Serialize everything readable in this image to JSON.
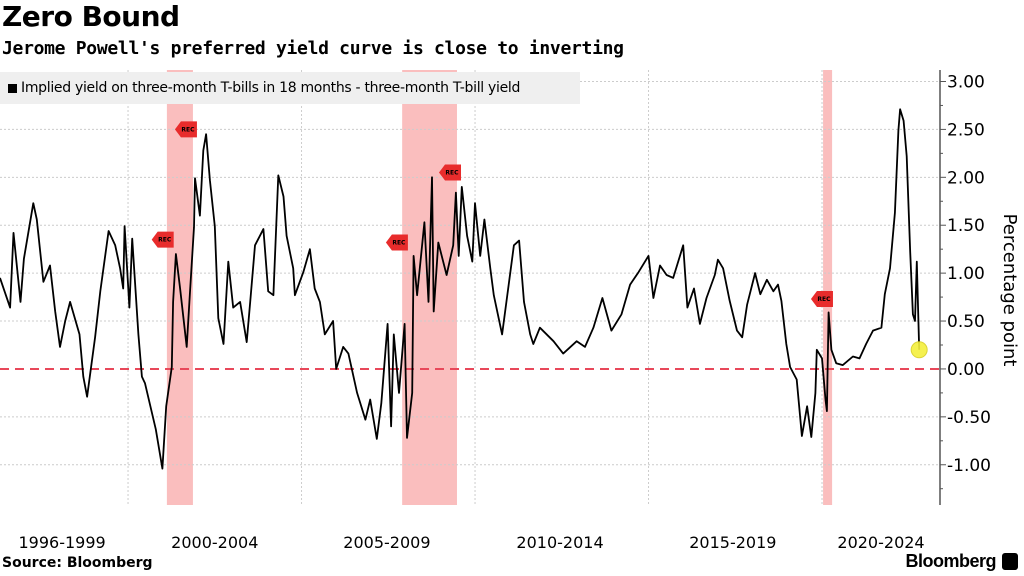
{
  "header": {
    "title": "Zero Bound",
    "subtitle": "Jerome Powell's preferred yield curve is close to inverting"
  },
  "footer": {
    "source": "Source: Bloomberg",
    "brand": "Bloomberg"
  },
  "colors": {
    "line": "#000000",
    "recession": "#f9b3b3",
    "zero_line": "#e8485a",
    "marker": "#e82c2c",
    "highlight": "#f5f03c"
  },
  "chart_data": {
    "type": "line",
    "title": "Zero Bound",
    "subtitle": "Jerome Powell's preferred yield curve is close to inverting",
    "ylabel": "Percentage point",
    "xlabel": "",
    "ylim": [
      -1.42,
      3.12
    ],
    "xlim": [
      1996.31,
      2023.4
    ],
    "grid": true,
    "legend_placement": "top-left",
    "yticks": [
      {
        "v": 3,
        "label": "3.00"
      },
      {
        "v": 2.5,
        "label": "2.50"
      },
      {
        "v": 2,
        "label": "2.00"
      },
      {
        "v": 1.5,
        "label": "1.50"
      },
      {
        "v": 1,
        "label": "1.00"
      },
      {
        "v": 0.5,
        "label": "0.50"
      },
      {
        "v": 0,
        "label": "0.00"
      },
      {
        "v": -0.5,
        "label": "-0.50"
      },
      {
        "v": -1,
        "label": "-1.00"
      }
    ],
    "xgrid": [
      2000,
      2005,
      2010,
      2015,
      2020
    ],
    "xticks": [
      {
        "pos": 1998.1,
        "label": "1996-1999"
      },
      {
        "pos": 2002.5,
        "label": "2000-2004"
      },
      {
        "pos": 2007.46,
        "label": "2005-2009"
      },
      {
        "pos": 2012.45,
        "label": "2010-2014"
      },
      {
        "pos": 2017.43,
        "label": "2015-2019"
      },
      {
        "pos": 2021.7,
        "label": "2020-2024"
      }
    ],
    "reference_line": 0,
    "recessions": [
      [
        2001.12,
        2001.87
      ],
      [
        2007.9,
        2009.48
      ],
      [
        2020.03,
        2020.29
      ]
    ],
    "recession_markers": [
      {
        "x": 2001.87,
        "y": 2.5,
        "label": "REC"
      },
      {
        "x": 2001.2,
        "y": 1.35,
        "label": "REC"
      },
      {
        "x": 2007.95,
        "y": 1.32,
        "label": "REC"
      },
      {
        "x": 2009.48,
        "y": 2.05,
        "label": "REC"
      },
      {
        "x": 2020.2,
        "y": 0.73,
        "label": "REC"
      }
    ],
    "highlight_point": {
      "x": 2022.8,
      "y": 0.2
    },
    "series": [
      {
        "name": "Implied yield on three-month T-bills in 18 months - three-month T-bill yield",
        "x": [
          1996.31,
          1996.6,
          1996.7,
          1996.9,
          1997.0,
          1997.27,
          1997.37,
          1997.56,
          1997.75,
          1997.9,
          1998.04,
          1998.19,
          1998.33,
          1998.6,
          1998.71,
          1998.82,
          1999.05,
          1999.2,
          1999.44,
          1999.63,
          1999.77,
          1999.86,
          1999.9,
          2000.04,
          2000.12,
          2000.3,
          2000.4,
          2000.49,
          2000.8,
          2000.99,
          2001.1,
          2001.26,
          2001.3,
          2001.38,
          2001.5,
          2001.69,
          2001.78,
          2001.9,
          2001.93,
          2002.07,
          2002.17,
          2002.25,
          2002.36,
          2002.5,
          2002.6,
          2002.75,
          2002.89,
          2003.03,
          2003.23,
          2003.42,
          2003.52,
          2003.66,
          2003.9,
          2004.04,
          2004.19,
          2004.33,
          2004.48,
          2004.57,
          2004.76,
          2004.81,
          2005.05,
          2005.24,
          2005.38,
          2005.53,
          2005.67,
          2005.91,
          2006.0,
          2006.2,
          2006.35,
          2006.6,
          2006.84,
          2006.98,
          2007.17,
          2007.3,
          2007.48,
          2007.58,
          2007.66,
          2007.81,
          2007.97,
          2008.04,
          2008.19,
          2008.23,
          2008.33,
          2008.54,
          2008.66,
          2008.76,
          2008.81,
          2008.94,
          2009.18,
          2009.37,
          2009.45,
          2009.53,
          2009.62,
          2009.77,
          2009.92,
          2010.0,
          2010.15,
          2010.27,
          2010.44,
          2010.54,
          2010.78,
          2010.97,
          2011.12,
          2011.27,
          2011.41,
          2011.59,
          2011.68,
          2011.87,
          2012.26,
          2012.54,
          2012.93,
          2013.17,
          2013.41,
          2013.67,
          2013.93,
          2014.22,
          2014.47,
          2014.71,
          2015.0,
          2015.14,
          2015.33,
          2015.52,
          2015.71,
          2016.0,
          2016.12,
          2016.31,
          2016.48,
          2016.67,
          2016.91,
          2017.0,
          2017.15,
          2017.34,
          2017.55,
          2017.7,
          2017.84,
          2018.07,
          2018.22,
          2018.41,
          2018.6,
          2018.73,
          2018.83,
          2018.97,
          2019.08,
          2019.27,
          2019.42,
          2019.57,
          2019.69,
          2019.81,
          2019.85,
          2020.0,
          2020.1,
          2020.14,
          2020.19,
          2020.27,
          2020.41,
          2020.6,
          2020.89,
          2021.08,
          2021.27,
          2021.47,
          2021.71,
          2021.81,
          2021.96,
          2022.1,
          2022.2,
          2022.25,
          2022.35,
          2022.44,
          2022.54,
          2022.62,
          2022.68,
          2022.73,
          2022.8
        ],
        "y": [
          0.95,
          0.64,
          1.42,
          0.7,
          1.15,
          1.73,
          1.56,
          0.91,
          1.08,
          0.6,
          0.23,
          0.5,
          0.7,
          0.36,
          -0.08,
          -0.29,
          0.33,
          0.81,
          1.44,
          1.29,
          1.05,
          0.84,
          1.49,
          0.64,
          1.36,
          0.36,
          -0.08,
          -0.15,
          -0.63,
          -1.04,
          -0.39,
          0.02,
          0.7,
          1.2,
          0.84,
          0.23,
          0.77,
          1.48,
          1.99,
          1.6,
          2.28,
          2.45,
          1.97,
          1.49,
          0.53,
          0.26,
          1.12,
          0.64,
          0.7,
          0.28,
          0.7,
          1.29,
          1.46,
          0.81,
          0.77,
          2.02,
          1.8,
          1.39,
          1.05,
          0.77,
          1.01,
          1.25,
          0.84,
          0.7,
          0.36,
          0.5,
          0.0,
          0.23,
          0.16,
          -0.25,
          -0.53,
          -0.32,
          -0.73,
          -0.36,
          0.47,
          -0.6,
          0.36,
          -0.25,
          0.47,
          -0.72,
          -0.25,
          1.18,
          0.77,
          1.53,
          0.7,
          2.0,
          0.6,
          1.32,
          0.98,
          1.29,
          1.84,
          1.18,
          1.9,
          1.39,
          1.12,
          1.73,
          1.18,
          1.56,
          1.05,
          0.77,
          0.36,
          0.88,
          1.29,
          1.34,
          0.7,
          0.36,
          0.26,
          0.43,
          0.29,
          0.16,
          0.29,
          0.23,
          0.43,
          0.74,
          0.4,
          0.57,
          0.88,
          1.01,
          1.18,
          0.74,
          1.08,
          0.98,
          0.95,
          1.29,
          0.64,
          0.84,
          0.47,
          0.74,
          0.98,
          1.14,
          1.05,
          0.71,
          0.4,
          0.33,
          0.67,
          1.0,
          0.78,
          0.93,
          0.81,
          0.88,
          0.71,
          0.26,
          0.02,
          -0.11,
          -0.7,
          -0.39,
          -0.71,
          -0.25,
          0.2,
          0.11,
          -0.32,
          -0.44,
          0.59,
          0.2,
          0.06,
          0.04,
          0.13,
          0.11,
          0.26,
          0.4,
          0.43,
          0.78,
          1.05,
          1.63,
          2.49,
          2.71,
          2.59,
          2.22,
          1.22,
          0.57,
          0.5,
          1.12,
          0.2
        ]
      }
    ]
  }
}
